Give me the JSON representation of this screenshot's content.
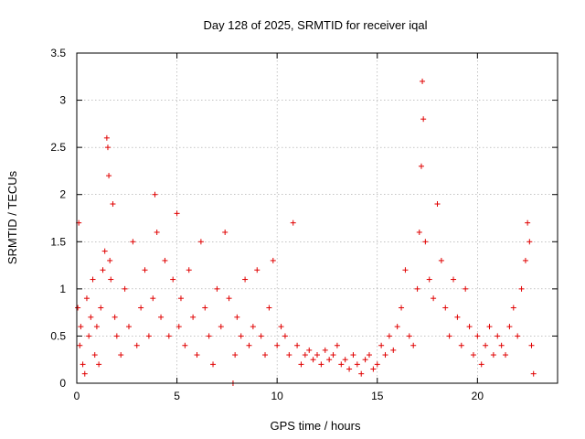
{
  "chart_data": {
    "type": "scatter",
    "title": "Day 128 of 2025, SRMTID for receiver iqal",
    "xlabel": "GPS time / hours",
    "ylabel": "SRMTID / TECUs",
    "xlim": [
      0,
      24
    ],
    "ylim": [
      0,
      3.5
    ],
    "xticks": [
      0,
      5,
      10,
      15,
      20
    ],
    "xtick_labels": [
      "0",
      "5",
      "10",
      "15",
      "20"
    ],
    "yticks": [
      0,
      0.5,
      1,
      1.5,
      2,
      2.5,
      3,
      3.5
    ],
    "ytick_labels": [
      "0",
      "0.5",
      "1",
      "1.5",
      "2",
      "2.5",
      "3",
      "3.5"
    ],
    "grid": true,
    "legend": "none",
    "marker": "+",
    "series": [
      {
        "name": "SRMTID",
        "color": "#e00000",
        "x": [
          0.05,
          0.1,
          0.15,
          0.2,
          0.3,
          0.4,
          0.5,
          0.6,
          0.7,
          0.8,
          0.9,
          1.0,
          1.1,
          1.2,
          1.3,
          1.4,
          1.5,
          1.55,
          1.6,
          1.65,
          1.7,
          1.8,
          1.9,
          2.0,
          2.2,
          2.4,
          2.6,
          2.8,
          3.0,
          3.2,
          3.4,
          3.6,
          3.8,
          3.9,
          4.0,
          4.2,
          4.4,
          4.6,
          4.8,
          5.0,
          5.1,
          5.2,
          5.4,
          5.6,
          5.8,
          6.0,
          6.2,
          6.4,
          6.6,
          6.8,
          7.0,
          7.2,
          7.4,
          7.6,
          7.8,
          7.9,
          8.0,
          8.2,
          8.4,
          8.6,
          8.8,
          9.0,
          9.2,
          9.4,
          9.6,
          9.8,
          10.0,
          10.2,
          10.4,
          10.6,
          10.8,
          11.0,
          11.2,
          11.4,
          11.6,
          11.8,
          12.0,
          12.2,
          12.4,
          12.6,
          12.8,
          13.0,
          13.2,
          13.4,
          13.6,
          13.8,
          14.0,
          14.2,
          14.4,
          14.6,
          14.8,
          15.0,
          15.2,
          15.4,
          15.6,
          15.8,
          16.0,
          16.2,
          16.4,
          16.6,
          16.8,
          17.0,
          17.1,
          17.2,
          17.25,
          17.3,
          17.4,
          17.6,
          17.8,
          18.0,
          18.2,
          18.4,
          18.6,
          18.8,
          19.0,
          19.2,
          19.4,
          19.6,
          19.8,
          20.0,
          20.2,
          20.4,
          20.6,
          20.8,
          21.0,
          21.2,
          21.4,
          21.6,
          21.8,
          22.0,
          22.2,
          22.4,
          22.5,
          22.6,
          22.7,
          22.8
        ],
        "y": [
          0.8,
          1.7,
          0.4,
          0.6,
          0.2,
          0.1,
          0.9,
          0.5,
          0.7,
          1.1,
          0.3,
          0.6,
          0.2,
          0.8,
          1.2,
          1.4,
          2.6,
          2.5,
          2.2,
          1.3,
          1.1,
          1.9,
          0.7,
          0.5,
          0.3,
          1.0,
          0.6,
          1.5,
          0.4,
          0.8,
          1.2,
          0.5,
          0.9,
          2.0,
          1.6,
          0.7,
          1.3,
          0.5,
          1.1,
          1.8,
          0.6,
          0.9,
          0.4,
          1.2,
          0.7,
          0.3,
          1.5,
          0.8,
          0.5,
          0.2,
          1.0,
          0.6,
          1.6,
          0.9,
          0.0,
          0.3,
          0.7,
          0.5,
          1.1,
          0.4,
          0.6,
          1.2,
          0.5,
          0.3,
          0.8,
          1.3,
          0.4,
          0.6,
          0.5,
          0.3,
          1.7,
          0.4,
          0.2,
          0.3,
          0.35,
          0.25,
          0.3,
          0.2,
          0.35,
          0.25,
          0.3,
          0.4,
          0.2,
          0.25,
          0.15,
          0.3,
          0.2,
          0.1,
          0.25,
          0.3,
          0.15,
          0.2,
          0.4,
          0.3,
          0.5,
          0.35,
          0.6,
          0.8,
          1.2,
          0.5,
          0.4,
          1.0,
          1.6,
          2.3,
          3.2,
          2.8,
          1.5,
          1.1,
          0.9,
          1.9,
          1.3,
          0.8,
          0.5,
          1.1,
          0.7,
          0.4,
          1.0,
          0.6,
          0.3,
          0.5,
          0.2,
          0.4,
          0.6,
          0.3,
          0.5,
          0.4,
          0.3,
          0.6,
          0.8,
          0.5,
          1.0,
          1.3,
          1.7,
          1.5,
          0.4,
          0.1
        ],
        "series_note": "approximate sample of dense scatter"
      }
    ]
  }
}
